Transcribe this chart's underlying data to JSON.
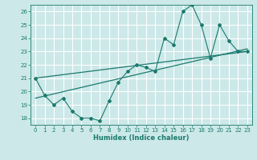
{
  "title": "",
  "xlabel": "Humidex (Indice chaleur)",
  "background_color": "#cce8e8",
  "grid_color": "#ffffff",
  "line_color": "#1a7a6e",
  "xlim": [
    -0.5,
    23.5
  ],
  "ylim": [
    17.5,
    26.5
  ],
  "xticks": [
    0,
    1,
    2,
    3,
    4,
    5,
    6,
    7,
    8,
    9,
    10,
    11,
    12,
    13,
    14,
    15,
    16,
    17,
    18,
    19,
    20,
    21,
    22,
    23
  ],
  "yticks": [
    18,
    19,
    20,
    21,
    22,
    23,
    24,
    25,
    26
  ],
  "series1_x": [
    0,
    1,
    2,
    3,
    4,
    5,
    6,
    7,
    8,
    9,
    10,
    11,
    12,
    13,
    14,
    15,
    16,
    17,
    18,
    19,
    20,
    21,
    22,
    23
  ],
  "series1_y": [
    21,
    19.7,
    19.0,
    19.5,
    18.5,
    18.0,
    18.0,
    17.8,
    19.3,
    20.7,
    21.5,
    22.0,
    21.8,
    21.5,
    24.0,
    23.5,
    26.0,
    26.5,
    25.0,
    22.5,
    25.0,
    23.8,
    23.0,
    23.0
  ],
  "series2_x": [
    0,
    23
  ],
  "series2_y": [
    19.5,
    23.2
  ],
  "series3_x": [
    0,
    23
  ],
  "series3_y": [
    21.0,
    23.0
  ],
  "figsize": [
    3.2,
    2.0
  ],
  "dpi": 100
}
